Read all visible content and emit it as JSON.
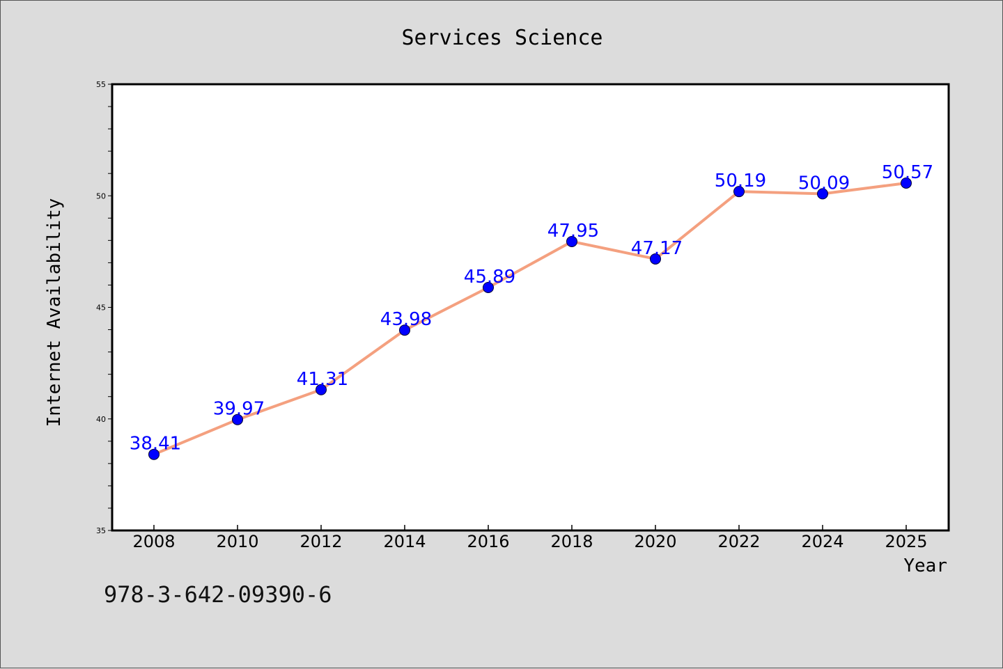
{
  "chart_data": {
    "type": "line",
    "title": "Services Science",
    "xlabel": "Year",
    "ylabel": "Internet Availability",
    "categories": [
      "2008",
      "2010",
      "2012",
      "2014",
      "2016",
      "2018",
      "2020",
      "2022",
      "2024",
      "2025"
    ],
    "series": [
      {
        "values": [
          38.41,
          39.97,
          41.31,
          43.98,
          45.89,
          47.95,
          47.17,
          50.19,
          50.09,
          50.57
        ],
        "data_labels": [
          "38.41",
          "39.97",
          "41.31",
          "43.98",
          "45.89",
          "47.95",
          "47.17",
          "50.19",
          "50.09",
          "50.57"
        ],
        "line_color": "#f4a07f",
        "marker_color": "#0000ff"
      }
    ],
    "ylim": [
      35,
      55
    ],
    "yticks": [
      "35",
      "40",
      "45",
      "50",
      "55"
    ],
    "grid": false,
    "legend": "none"
  },
  "footer": {
    "isbn": "978-3-642-09390-6"
  }
}
